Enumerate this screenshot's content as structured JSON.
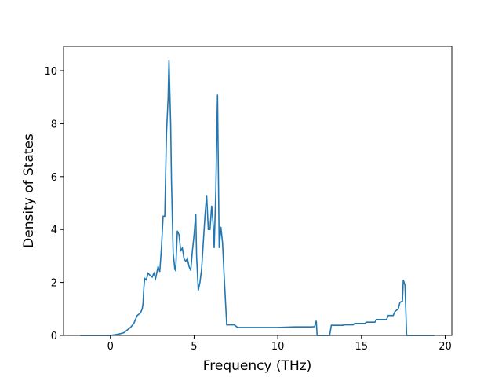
{
  "chart_data": {
    "type": "line",
    "xlabel": "Frequency (THz)",
    "ylabel": "Density of States",
    "color": "#1f77b4",
    "x": [
      -1.8,
      0,
      0.5,
      0.8,
      1.0,
      1.2,
      1.4,
      1.5,
      1.6,
      1.8,
      1.9,
      1.95,
      2.0,
      2.05,
      2.15,
      2.25,
      2.4,
      2.5,
      2.6,
      2.7,
      2.85,
      2.95,
      3.05,
      3.15,
      3.25,
      3.35,
      3.45,
      3.5,
      3.6,
      3.65,
      3.75,
      3.85,
      3.9,
      4.0,
      4.1,
      4.2,
      4.3,
      4.4,
      4.5,
      4.6,
      4.7,
      4.8,
      4.9,
      5.0,
      5.1,
      5.15,
      5.25,
      5.35,
      5.45,
      5.55,
      5.65,
      5.75,
      5.85,
      5.95,
      6.05,
      6.15,
      6.2,
      6.3,
      6.4,
      6.5,
      6.6,
      6.7,
      6.8,
      6.95,
      7.4,
      7.6,
      9.0,
      10.0,
      11.0,
      12.0,
      12.2,
      12.3,
      12.35,
      13.1,
      13.2,
      13.9,
      14.0,
      14.5,
      14.6,
      15.2,
      15.3,
      15.8,
      15.9,
      16.5,
      16.6,
      16.9,
      17.0,
      17.2,
      17.3,
      17.45,
      17.5,
      17.6,
      17.7,
      19.35
    ],
    "values": [
      0,
      0,
      0.05,
      0.1,
      0.2,
      0.3,
      0.45,
      0.6,
      0.75,
      0.85,
      1.0,
      1.2,
      1.8,
      2.15,
      2.1,
      2.35,
      2.25,
      2.2,
      2.35,
      2.15,
      2.6,
      2.4,
      3.3,
      4.5,
      4.5,
      7.6,
      9.0,
      10.4,
      8.0,
      5.8,
      3.1,
      2.5,
      2.45,
      3.95,
      3.8,
      3.2,
      3.3,
      2.9,
      2.8,
      2.9,
      2.6,
      2.45,
      3.2,
      3.8,
      4.6,
      3.0,
      1.7,
      2.0,
      2.5,
      3.5,
      4.5,
      5.3,
      4.0,
      4.0,
      4.9,
      4.1,
      3.3,
      5.5,
      9.1,
      3.3,
      4.1,
      3.5,
      2.2,
      0.4,
      0.4,
      0.3,
      0.3,
      0.3,
      0.32,
      0.32,
      0.33,
      0.55,
      0,
      0,
      0.38,
      0.38,
      0.4,
      0.4,
      0.45,
      0.45,
      0.5,
      0.5,
      0.6,
      0.6,
      0.75,
      0.75,
      0.9,
      1.0,
      1.25,
      1.3,
      2.1,
      1.9,
      0,
      0
    ],
    "xlim": [
      -2.8,
      20.4
    ],
    "ylim": [
      0,
      10.92
    ],
    "xticks": [
      0,
      5,
      10,
      15,
      20
    ],
    "yticks": [
      0,
      2,
      4,
      6,
      8,
      10
    ]
  }
}
